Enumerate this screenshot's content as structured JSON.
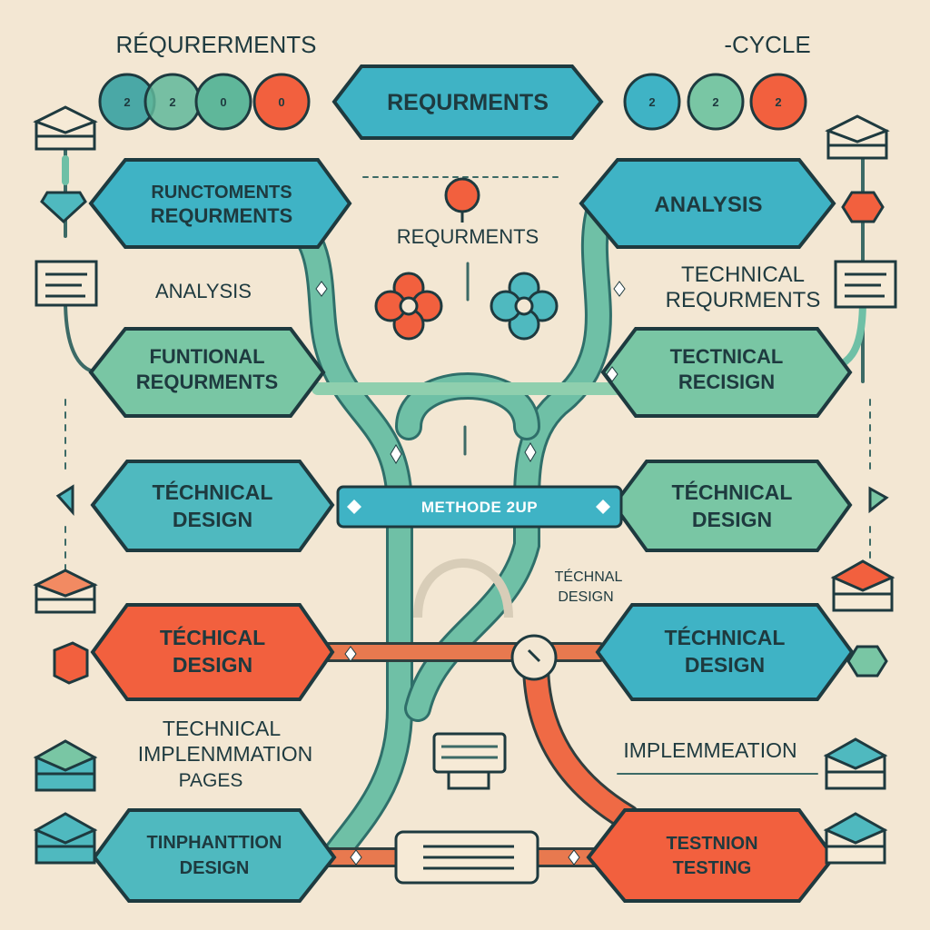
{
  "header": {
    "left_title": "RÉQURERMENTS",
    "right_title": "-CYCLE",
    "left_circles": [
      "2",
      "2",
      "0",
      "0"
    ],
    "right_circles": [
      "2",
      "2",
      "2"
    ]
  },
  "nodes": {
    "top": [
      "REQURMENTS"
    ],
    "left_1": [
      "RUNCTOMENTS",
      "REQURMENTS"
    ],
    "right_1": [
      "ANALYSIS"
    ],
    "left_2": [
      "FUNTIONAL",
      "REQURMENTS"
    ],
    "right_2": [
      "TECTNICAL",
      "RECISIGN"
    ],
    "left_3": [
      "TÉCHNICAL",
      "DESIGN"
    ],
    "right_3": [
      "TÉCHNICAL",
      "DESIGN"
    ],
    "left_4": [
      "TÉCHICAL",
      "DESIGN"
    ],
    "right_4": [
      "TÉCHNICAL",
      "DESIGN"
    ],
    "left_5": [
      "TINPHANTTION",
      "DESIGN"
    ],
    "right_5": [
      "TESTNION",
      "TESTING"
    ]
  },
  "labels": {
    "center_requirements": "REQURMENTS",
    "left_analysis": "ANALYSIS",
    "right_technical": [
      "TECHNICAL",
      "REQURMENTS"
    ],
    "center_technical_design": [
      "TÉCHNAL",
      "DESIGN"
    ],
    "left_implementation": [
      "TECHNICAL",
      "IMPLENMMATION",
      "PAGES"
    ],
    "right_implementation": "IMPLEMMEATION"
  },
  "banner": {
    "text": "METHODE 2UP"
  },
  "colors": {
    "background": "#f3e7d3",
    "blue": "#3fb3c5",
    "green": "#79c6a4",
    "red": "#f2603e",
    "dark": "#1e3a3f",
    "path": "#6fc0a6"
  },
  "icons": [
    "stack-icon",
    "document-icon",
    "flower-icon",
    "pin-icon",
    "monitor-icon",
    "cube-icon"
  ]
}
